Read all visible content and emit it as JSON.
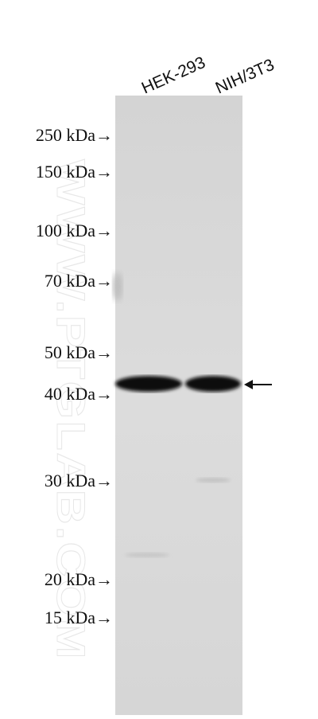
{
  "lanes": [
    "HEK-293",
    "NIH/3T3"
  ],
  "markers": [
    "250 kDa→",
    "150 kDa→",
    "100 kDa→",
    "70 kDa→",
    "50 kDa→",
    "40 kDa→",
    "30 kDa→",
    "20 kDa→",
    "15 kDa→"
  ],
  "watermark": "WWW.PTGLAB.COM"
}
